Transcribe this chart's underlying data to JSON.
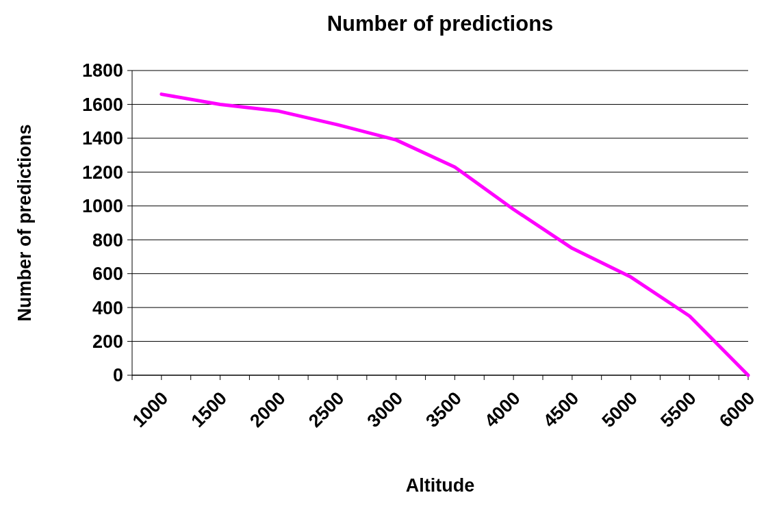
{
  "chart_data": {
    "type": "line",
    "title": "Number of predictions",
    "xlabel": "Altitude",
    "ylabel": "Number of predictions",
    "categories": [
      "1000",
      "1500",
      "2000",
      "2500",
      "3000",
      "3500",
      "4000",
      "4500",
      "5000",
      "5500",
      "6000"
    ],
    "series": [
      {
        "color": "#ff00ff",
        "values": [
          1660,
          1600,
          1560,
          1480,
          1390,
          1230,
          980,
          750,
          580,
          350,
          0
        ]
      }
    ],
    "ylim": [
      0,
      1800
    ],
    "yticks": [
      0,
      200,
      400,
      600,
      800,
      1000,
      1200,
      1400,
      1600,
      1800
    ],
    "grid": "y",
    "marker": "none",
    "line_style": "solid"
  }
}
